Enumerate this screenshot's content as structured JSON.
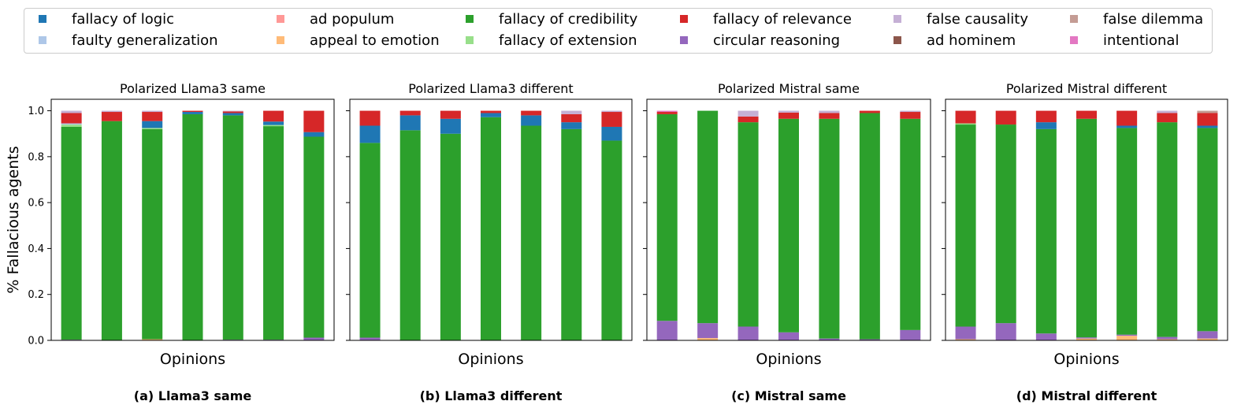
{
  "legend": [
    {
      "label": "fallacy of logic",
      "color": "#1f77b4"
    },
    {
      "label": "faulty generalization",
      "color": "#aec7e8"
    },
    {
      "label": "ad populum",
      "color": "#ff9896"
    },
    {
      "label": "appeal to emotion",
      "color": "#ffbb78"
    },
    {
      "label": "fallacy of credibility",
      "color": "#2ca02c"
    },
    {
      "label": "fallacy of extension",
      "color": "#98df8a"
    },
    {
      "label": "fallacy of relevance",
      "color": "#d62728"
    },
    {
      "label": "circular reasoning",
      "color": "#9467bd"
    },
    {
      "label": "false causality",
      "color": "#c5b0d5"
    },
    {
      "label": "ad hominem",
      "color": "#8c564b"
    },
    {
      "label": "false dilemma",
      "color": "#c49c94"
    },
    {
      "label": "intentional",
      "color": "#e377c2"
    }
  ],
  "ylabel": "% Fallacious agents",
  "chart_data": [
    {
      "type": "bar",
      "stacked": true,
      "title": "Polarized Llama3 same",
      "xlabel": "Opinions",
      "caption": "(a) Llama3 same",
      "ylim": [
        0,
        1.05
      ],
      "yticks": [
        "0.0",
        "0.2",
        "0.4",
        "0.6",
        "0.8",
        "1.0"
      ],
      "bars": [
        [
          {
            "c": "circular reasoning",
            "v": 0.003
          },
          {
            "c": "fallacy of credibility",
            "v": 0.927
          },
          {
            "c": "fallacy of extension",
            "v": 0.01
          },
          {
            "c": "faulty generalization",
            "v": 0.005
          },
          {
            "c": "fallacy of relevance",
            "v": 0.045
          },
          {
            "c": "false causality",
            "v": 0.01
          }
        ],
        [
          {
            "c": "fallacy of credibility",
            "v": 0.955
          },
          {
            "c": "fallacy of relevance",
            "v": 0.04
          },
          {
            "c": "false causality",
            "v": 0.005
          }
        ],
        [
          {
            "c": "appeal to emotion",
            "v": 0.005
          },
          {
            "c": "fallacy of credibility",
            "v": 0.915
          },
          {
            "c": "fallacy of extension",
            "v": 0.005
          },
          {
            "c": "fallacy of logic",
            "v": 0.03
          },
          {
            "c": "fallacy of relevance",
            "v": 0.04
          },
          {
            "c": "false causality",
            "v": 0.005
          }
        ],
        [
          {
            "c": "fallacy of credibility",
            "v": 0.985
          },
          {
            "c": "fallacy of logic",
            "v": 0.01
          },
          {
            "c": "fallacy of relevance",
            "v": 0.005
          }
        ],
        [
          {
            "c": "circular reasoning",
            "v": 0.003
          },
          {
            "c": "fallacy of credibility",
            "v": 0.977
          },
          {
            "c": "fallacy of logic",
            "v": 0.01
          },
          {
            "c": "fallacy of relevance",
            "v": 0.007
          },
          {
            "c": "false causality",
            "v": 0.003
          }
        ],
        [
          {
            "c": "circular reasoning",
            "v": 0.003
          },
          {
            "c": "fallacy of credibility",
            "v": 0.93
          },
          {
            "c": "fallacy of extension",
            "v": 0.005
          },
          {
            "c": "fallacy of logic",
            "v": 0.015
          },
          {
            "c": "fallacy of relevance",
            "v": 0.047
          }
        ],
        [
          {
            "c": "circular reasoning",
            "v": 0.012
          },
          {
            "c": "fallacy of credibility",
            "v": 0.875
          },
          {
            "c": "fallacy of logic",
            "v": 0.02
          },
          {
            "c": "fallacy of relevance",
            "v": 0.093
          }
        ]
      ]
    },
    {
      "type": "bar",
      "stacked": true,
      "title": "Polarized Llama3 different",
      "xlabel": "Opinions",
      "caption": "(b) Llama3 different",
      "ylim": [
        0,
        1.05
      ],
      "bars": [
        [
          {
            "c": "circular reasoning",
            "v": 0.012
          },
          {
            "c": "fallacy of credibility",
            "v": 0.848
          },
          {
            "c": "fallacy of logic",
            "v": 0.075
          },
          {
            "c": "fallacy of relevance",
            "v": 0.065
          }
        ],
        [
          {
            "c": "fallacy of credibility",
            "v": 0.915
          },
          {
            "c": "fallacy of logic",
            "v": 0.065
          },
          {
            "c": "fallacy of relevance",
            "v": 0.02
          }
        ],
        [
          {
            "c": "fallacy of credibility",
            "v": 0.9
          },
          {
            "c": "fallacy of logic",
            "v": 0.065
          },
          {
            "c": "fallacy of relevance",
            "v": 0.035
          }
        ],
        [
          {
            "c": "fallacy of credibility",
            "v": 0.972
          },
          {
            "c": "fallacy of logic",
            "v": 0.018
          },
          {
            "c": "fallacy of relevance",
            "v": 0.01
          }
        ],
        [
          {
            "c": "fallacy of credibility",
            "v": 0.935
          },
          {
            "c": "fallacy of logic",
            "v": 0.045
          },
          {
            "c": "fallacy of relevance",
            "v": 0.02
          }
        ],
        [
          {
            "c": "fallacy of credibility",
            "v": 0.92
          },
          {
            "c": "fallacy of logic",
            "v": 0.03
          },
          {
            "c": "fallacy of relevance",
            "v": 0.035
          },
          {
            "c": "false causality",
            "v": 0.015
          }
        ],
        [
          {
            "c": "fallacy of credibility",
            "v": 0.87
          },
          {
            "c": "fallacy of logic",
            "v": 0.06
          },
          {
            "c": "fallacy of relevance",
            "v": 0.065
          },
          {
            "c": "false causality",
            "v": 0.005
          }
        ]
      ]
    },
    {
      "type": "bar",
      "stacked": true,
      "title": "Polarized Mistral same",
      "xlabel": "Opinions",
      "caption": "(c) Mistral same",
      "ylim": [
        0,
        1.05
      ],
      "bars": [
        [
          {
            "c": "circular reasoning",
            "v": 0.085
          },
          {
            "c": "fallacy of credibility",
            "v": 0.9
          },
          {
            "c": "fallacy of relevance",
            "v": 0.01
          },
          {
            "c": "intentional",
            "v": 0.005
          }
        ],
        [
          {
            "c": "appeal to emotion",
            "v": 0.01
          },
          {
            "c": "circular reasoning",
            "v": 0.065
          },
          {
            "c": "fallacy of credibility",
            "v": 0.925
          }
        ],
        [
          {
            "c": "circular reasoning",
            "v": 0.06
          },
          {
            "c": "fallacy of credibility",
            "v": 0.89
          },
          {
            "c": "fallacy of relevance",
            "v": 0.025
          },
          {
            "c": "false causality",
            "v": 0.025
          }
        ],
        [
          {
            "c": "circular reasoning",
            "v": 0.035
          },
          {
            "c": "fallacy of credibility",
            "v": 0.93
          },
          {
            "c": "fallacy of relevance",
            "v": 0.027
          },
          {
            "c": "false causality",
            "v": 0.008
          }
        ],
        [
          {
            "c": "circular reasoning",
            "v": 0.008
          },
          {
            "c": "fallacy of credibility",
            "v": 0.957
          },
          {
            "c": "fallacy of relevance",
            "v": 0.025
          },
          {
            "c": "false causality",
            "v": 0.01
          }
        ],
        [
          {
            "c": "circular reasoning",
            "v": 0.005
          },
          {
            "c": "fallacy of credibility",
            "v": 0.985
          },
          {
            "c": "fallacy of relevance",
            "v": 0.01
          }
        ],
        [
          {
            "c": "circular reasoning",
            "v": 0.045
          },
          {
            "c": "fallacy of credibility",
            "v": 0.92
          },
          {
            "c": "fallacy of relevance",
            "v": 0.03
          },
          {
            "c": "false causality",
            "v": 0.005
          }
        ]
      ]
    },
    {
      "type": "bar",
      "stacked": true,
      "title": "Polarized Mistral different",
      "xlabel": "Opinions",
      "caption": "(d) Mistral different",
      "ylim": [
        0,
        1.05
      ],
      "bars": [
        [
          {
            "c": "appeal to emotion",
            "v": 0.005
          },
          {
            "c": "circular reasoning",
            "v": 0.055
          },
          {
            "c": "fallacy of credibility",
            "v": 0.88
          },
          {
            "c": "fallacy of extension",
            "v": 0.005
          },
          {
            "c": "fallacy of relevance",
            "v": 0.055
          }
        ],
        [
          {
            "c": "circular reasoning",
            "v": 0.075
          },
          {
            "c": "fallacy of credibility",
            "v": 0.865
          },
          {
            "c": "fallacy of relevance",
            "v": 0.06
          }
        ],
        [
          {
            "c": "circular reasoning",
            "v": 0.03
          },
          {
            "c": "fallacy of credibility",
            "v": 0.89
          },
          {
            "c": "fallacy of logic",
            "v": 0.03
          },
          {
            "c": "fallacy of relevance",
            "v": 0.05
          }
        ],
        [
          {
            "c": "appeal to emotion",
            "v": 0.008
          },
          {
            "c": "circular reasoning",
            "v": 0.005
          },
          {
            "c": "fallacy of credibility",
            "v": 0.952
          },
          {
            "c": "fallacy of relevance",
            "v": 0.035
          }
        ],
        [
          {
            "c": "appeal to emotion",
            "v": 0.02
          },
          {
            "c": "circular reasoning",
            "v": 0.005
          },
          {
            "c": "fallacy of credibility",
            "v": 0.9
          },
          {
            "c": "fallacy of logic",
            "v": 0.01
          },
          {
            "c": "fallacy of relevance",
            "v": 0.065
          }
        ],
        [
          {
            "c": "appeal to emotion",
            "v": 0.005
          },
          {
            "c": "circular reasoning",
            "v": 0.01
          },
          {
            "c": "fallacy of credibility",
            "v": 0.935
          },
          {
            "c": "fallacy of relevance",
            "v": 0.04
          },
          {
            "c": "false causality",
            "v": 0.01
          }
        ],
        [
          {
            "c": "appeal to emotion",
            "v": 0.008
          },
          {
            "c": "circular reasoning",
            "v": 0.032
          },
          {
            "c": "fallacy of credibility",
            "v": 0.885
          },
          {
            "c": "fallacy of logic",
            "v": 0.01
          },
          {
            "c": "fallacy of relevance",
            "v": 0.055
          },
          {
            "c": "false dilemma",
            "v": 0.01
          }
        ]
      ]
    }
  ]
}
